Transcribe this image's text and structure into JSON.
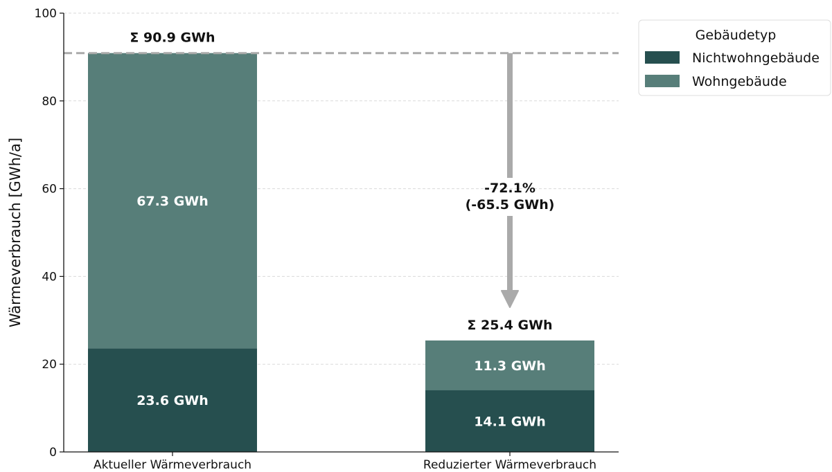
{
  "chart_data": {
    "type": "bar",
    "stacked": true,
    "categories": [
      "Aktueller Wärmeverbrauch",
      "Reduzierter Wärmeverbrauch"
    ],
    "series": [
      {
        "name": "Nichtwohngebäude",
        "values": [
          23.6,
          14.1
        ],
        "color": "#264f4f"
      },
      {
        "name": "Wohngebäude",
        "values": [
          67.3,
          11.3
        ],
        "color": "#577e79"
      }
    ],
    "segment_labels": [
      [
        "23.6 GWh",
        "14.1 GWh"
      ],
      [
        "67.3 GWh",
        "11.3 GWh"
      ]
    ],
    "totals": [
      90.9,
      25.4
    ],
    "total_labels": [
      "Σ 90.9 GWh",
      "Σ 25.4 GWh"
    ],
    "reduction": {
      "percent_label": "-72.1%",
      "abs_label": "(-65.5 GWh)",
      "from": 90.9,
      "to": 25.4,
      "color": "#aaaaaa"
    },
    "ylabel": "Wärmeverbrauch [GWh/a]",
    "xlabel": "",
    "ylim": [
      0,
      100
    ],
    "yticks": [
      0,
      20,
      40,
      60,
      80,
      100
    ],
    "grid": true,
    "legend": {
      "title": "Gebäudetyp",
      "placement": "top-right, outside plot"
    }
  }
}
